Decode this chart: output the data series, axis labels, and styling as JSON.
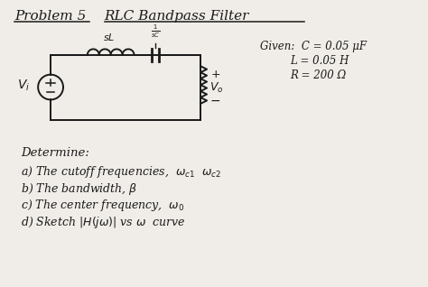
{
  "title_left": "Problem 5",
  "title_right": "RLC Bandpass Filter",
  "background_color": "#f0ede8",
  "text_color": "#1a1a1a",
  "given_c": "Given:  C = 0.05 μF",
  "given_l": "L = 0.05 H",
  "given_r": "R = 200 Ω",
  "det0": "Determine:",
  "det1": "a) The cutoff frequencies,  ωc1  ωc2",
  "det2": "b) The bandwidth, β",
  "det3": "c) The center frequency,  ω0",
  "det4": "d) Sketch |H(jω)| vs ω  curve",
  "font_family": "serif"
}
